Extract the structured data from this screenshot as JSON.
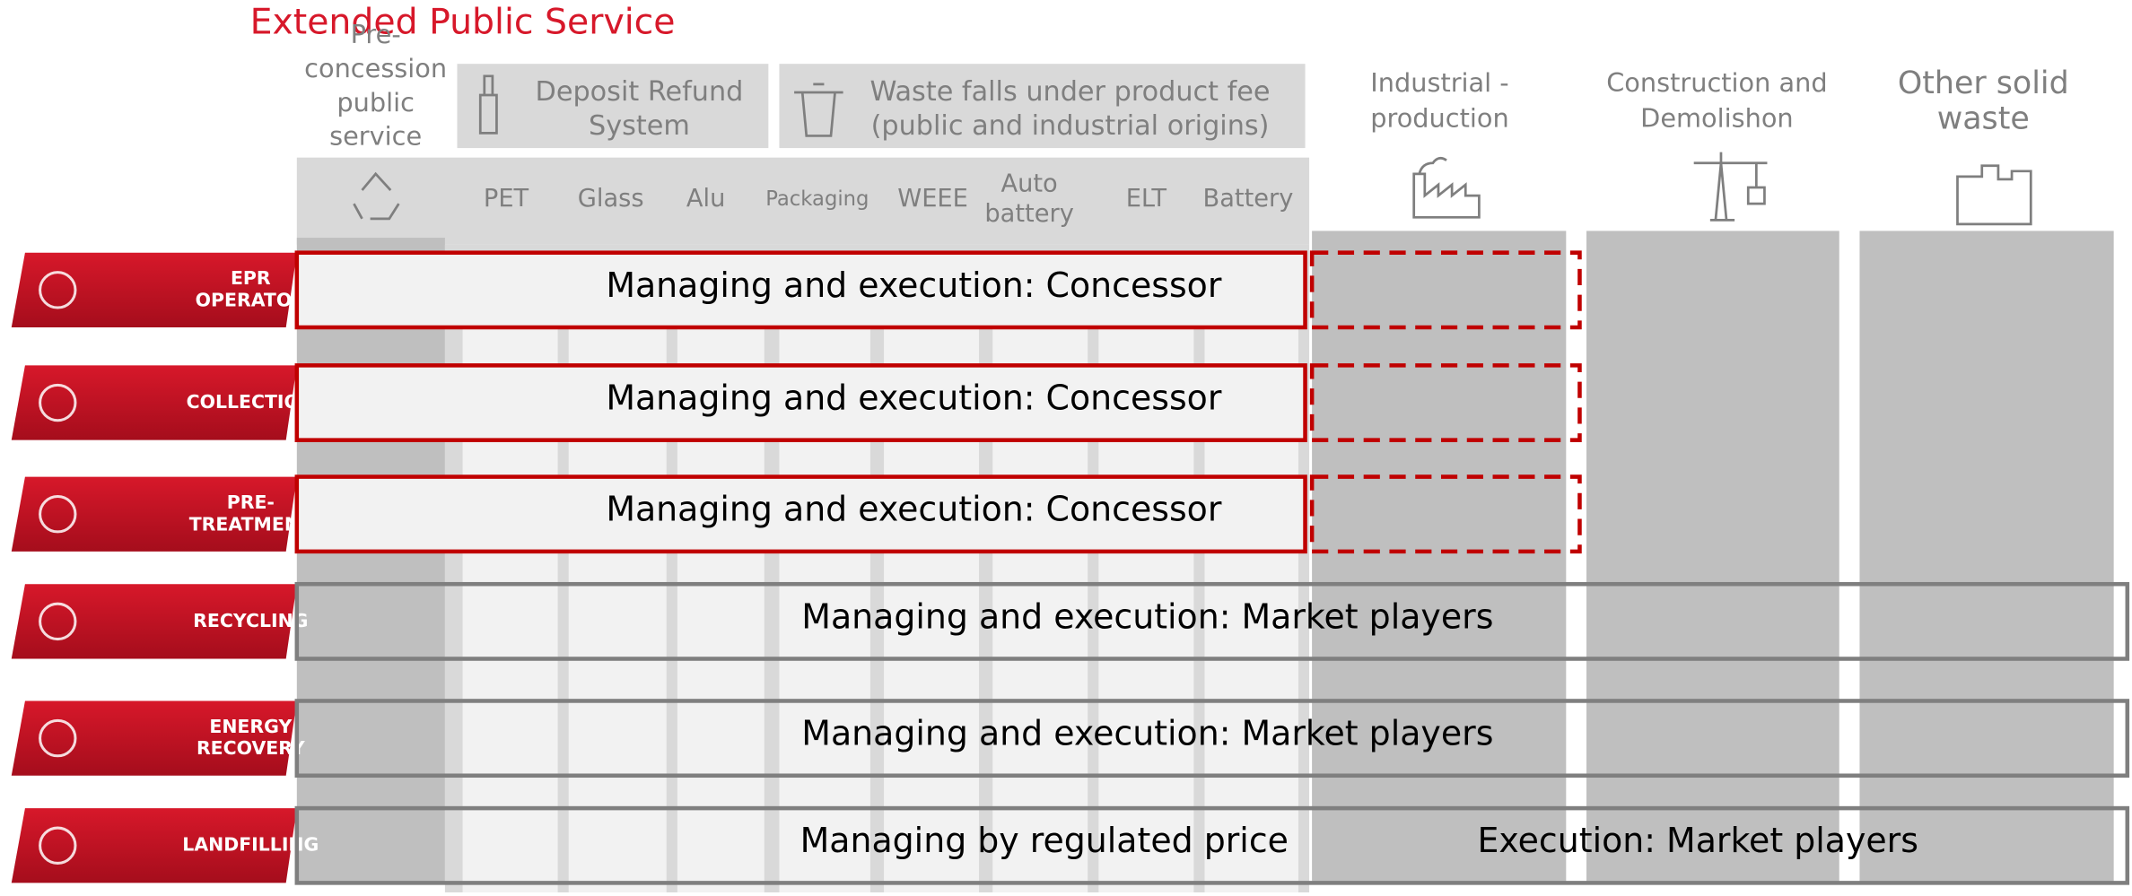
{
  "title": "Extended Public Service",
  "pre_concession": [
    "Pre-",
    "concession",
    "public",
    "service"
  ],
  "groups": [
    [
      "Deposit Refund",
      "System"
    ],
    [
      "Waste falls under product fee",
      "(public and industrial origins)"
    ]
  ],
  "subcolumns": [
    [
      "PET"
    ],
    [
      "Glass"
    ],
    [
      "Alu"
    ],
    [
      "Packaging"
    ],
    [
      "WEEE"
    ],
    [
      "Auto",
      "battery"
    ],
    [
      "ELT"
    ],
    [
      "Battery"
    ]
  ],
  "other_columns": [
    [
      "Industrial -",
      "production"
    ],
    [
      "Construction and",
      "Demolishon"
    ],
    [
      "Other solid",
      "waste"
    ]
  ],
  "rows": [
    [
      "EPR",
      "OPERATOR"
    ],
    [
      "COLLECTION"
    ],
    [
      "PRE-",
      "TREATMENT"
    ],
    [
      "RECYCLING"
    ],
    [
      "ENERGY",
      "RECOVERY"
    ],
    [
      "LANDFILLING"
    ]
  ],
  "bands": [
    [
      "Managing and execution: Concessor"
    ],
    [
      "Managing and execution: Concessor"
    ],
    [
      "Managing and execution: Concessor"
    ],
    [
      "Managing and execution: Market players"
    ],
    [
      "Managing and execution: Market players"
    ],
    [
      "Managing by regulated price",
      "Execution: Market players"
    ]
  ]
}
